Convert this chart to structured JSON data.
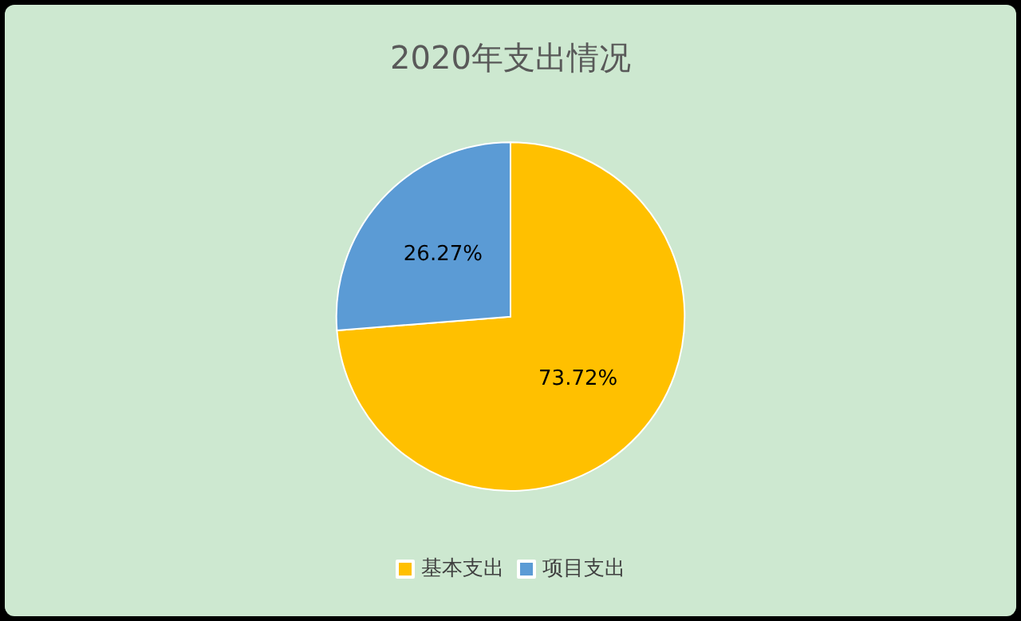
{
  "chart_data": {
    "type": "pie",
    "title": "2020年支出情况",
    "categories": [
      "基本支出",
      "项目支出"
    ],
    "values": [
      73.72,
      26.27
    ],
    "value_labels": [
      "73.72%",
      "26.27%"
    ],
    "colors": [
      "#ffc000",
      "#5b9bd5"
    ],
    "legend": "bottom"
  }
}
